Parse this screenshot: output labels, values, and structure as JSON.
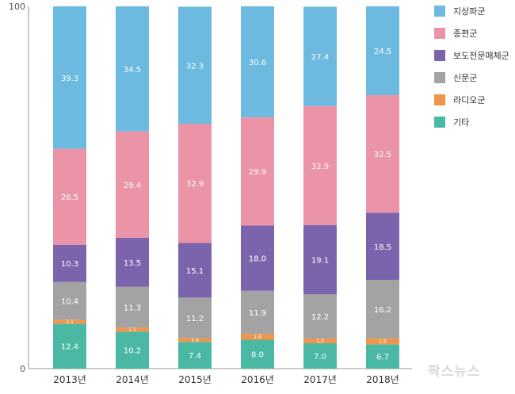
{
  "chart_data": {
    "type": "bar",
    "stacked": true,
    "categories": [
      "2013년",
      "2014년",
      "2015년",
      "2016년",
      "2017년",
      "2018년"
    ],
    "ylim": [
      0,
      100
    ],
    "yticks": [
      "0",
      "100"
    ],
    "series": [
      {
        "name": "기타",
        "color": "#4bb8a4",
        "values": [
          12.4,
          10.2,
          7.4,
          8.0,
          7.0,
          6.7
        ]
      },
      {
        "name": "라디오군",
        "color": "#f0964a",
        "values": [
          1.1,
          1.1,
          1.0,
          1.6,
          1.3,
          1.6
        ]
      },
      {
        "name": "신문군",
        "color": "#a3a3a3",
        "values": [
          10.4,
          11.3,
          11.2,
          11.9,
          12.2,
          16.2
        ]
      },
      {
        "name": "보도전문매체군",
        "color": "#7c64ac",
        "values": [
          10.3,
          13.5,
          15.1,
          18.0,
          19.1,
          18.5
        ]
      },
      {
        "name": "종편군",
        "color": "#eb94a7",
        "values": [
          26.5,
          29.4,
          32.9,
          29.9,
          32.9,
          32.5
        ]
      },
      {
        "name": "지상파군",
        "color": "#6cbadf",
        "values": [
          39.3,
          34.5,
          32.3,
          30.6,
          27.4,
          24.5
        ]
      }
    ],
    "legend_order": [
      "지상파군",
      "종편군",
      "보도전문매체군",
      "신문군",
      "라디오군",
      "기타"
    ],
    "legend_placement": "right",
    "grid": false
  },
  "watermark": "팍스뉴스"
}
